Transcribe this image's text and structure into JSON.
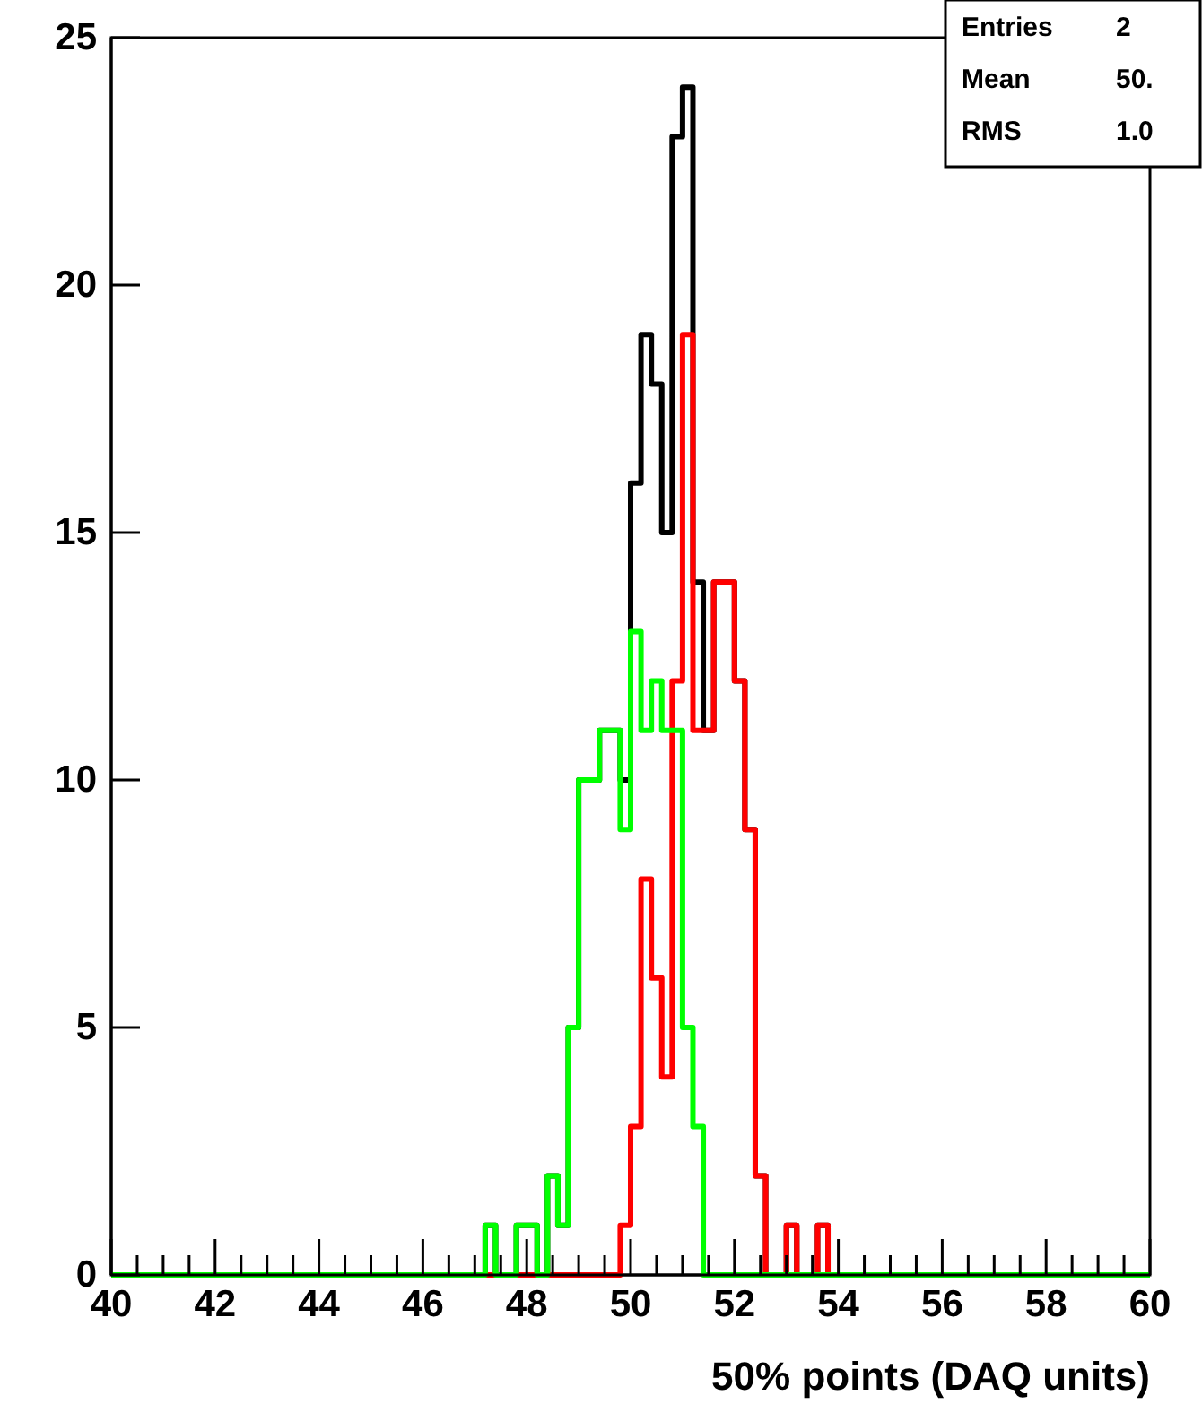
{
  "chart_data": {
    "type": "histogram",
    "xlabel": "50% points (DAQ units)",
    "annotations": [
      "Entries 2",
      "Mean 50.",
      "RMS 1.0"
    ],
    "bins": [
      40,
      40.2,
      40.4,
      40.6,
      40.8,
      41,
      41.2,
      41.4,
      41.6,
      41.8,
      42,
      42.2,
      42.4,
      42.6,
      42.8,
      43,
      43.2,
      43.4,
      43.6,
      43.8,
      44,
      44.2,
      44.4,
      44.6,
      44.8,
      45,
      45.2,
      45.4,
      45.6,
      45.8,
      46,
      46.2,
      46.4,
      46.6,
      46.8,
      47,
      47.2,
      47.4,
      47.6,
      47.8,
      48,
      48.2,
      48.4,
      48.6,
      48.8,
      49,
      49.2,
      49.4,
      49.6,
      49.8,
      50,
      50.2,
      50.4,
      50.6,
      50.8,
      51,
      51.2,
      51.4,
      51.6,
      51.8,
      52,
      52.2,
      52.4,
      52.6,
      52.8,
      53,
      53.2,
      53.4,
      53.6,
      53.8,
      54,
      54.2,
      54.4,
      54.6,
      54.8,
      55,
      55.2,
      55.4,
      55.6,
      55.8,
      56,
      56.2,
      56.4,
      56.6,
      56.8,
      57,
      57.2,
      57.4,
      57.6,
      57.8,
      58,
      58.2,
      58.4,
      58.6,
      58.8,
      59,
      59.2,
      59.4,
      59.6,
      59.8,
      60
    ],
    "series": [
      {
        "color": "#000000",
        "values": [
          0,
          0,
          0,
          0,
          0,
          0,
          0,
          0,
          0,
          0,
          0,
          0,
          0,
          0,
          0,
          0,
          0,
          0,
          0,
          0,
          0,
          0,
          0,
          0,
          0,
          0,
          0,
          0,
          0,
          0,
          0,
          0,
          0,
          0,
          0,
          0,
          1,
          0,
          0,
          1,
          1,
          0,
          2,
          1,
          5,
          10,
          10,
          11,
          11,
          10,
          16,
          19,
          18,
          15,
          23,
          24,
          14,
          11,
          14,
          14,
          12,
          9,
          2,
          0,
          0,
          1,
          0,
          0,
          1,
          0,
          0,
          0,
          0,
          0,
          0,
          0,
          0,
          0,
          0,
          0,
          0,
          0,
          0,
          0,
          0,
          0,
          0,
          0,
          0,
          0,
          0,
          0,
          0,
          0,
          0,
          0,
          0,
          0,
          0,
          0
        ]
      },
      {
        "color": "#ff0000",
        "values": [
          0,
          0,
          0,
          0,
          0,
          0,
          0,
          0,
          0,
          0,
          0,
          0,
          0,
          0,
          0,
          0,
          0,
          0,
          0,
          0,
          0,
          0,
          0,
          0,
          0,
          0,
          0,
          0,
          0,
          0,
          0,
          0,
          0,
          0,
          0,
          0,
          0,
          0,
          0,
          0,
          0,
          0,
          0,
          0,
          0,
          0,
          0,
          0,
          0,
          1,
          3,
          8,
          6,
          4,
          12,
          19,
          11,
          11,
          14,
          14,
          12,
          9,
          2,
          0,
          0,
          1,
          0,
          0,
          1,
          0,
          0,
          0,
          0,
          0,
          0,
          0,
          0,
          0,
          0,
          0,
          0,
          0,
          0,
          0,
          0,
          0,
          0,
          0,
          0,
          0,
          0,
          0,
          0,
          0,
          0,
          0,
          0,
          0,
          0,
          0
        ]
      },
      {
        "color": "#00ff00",
        "values": [
          0,
          0,
          0,
          0,
          0,
          0,
          0,
          0,
          0,
          0,
          0,
          0,
          0,
          0,
          0,
          0,
          0,
          0,
          0,
          0,
          0,
          0,
          0,
          0,
          0,
          0,
          0,
          0,
          0,
          0,
          0,
          0,
          0,
          0,
          0,
          0,
          1,
          0,
          0,
          1,
          1,
          0,
          2,
          1,
          5,
          10,
          10,
          11,
          11,
          9,
          13,
          11,
          12,
          11,
          11,
          5,
          3,
          0,
          0,
          0,
          0,
          0,
          0,
          0,
          0,
          0,
          0,
          0,
          0,
          0,
          0,
          0,
          0,
          0,
          0,
          0,
          0,
          0,
          0,
          0,
          0,
          0,
          0,
          0,
          0,
          0,
          0,
          0,
          0,
          0,
          0,
          0,
          0,
          0,
          0,
          0,
          0,
          0,
          0,
          0
        ]
      }
    ],
    "xlim": [
      40,
      60
    ],
    "xticks": [
      40,
      {
        "value": 40.5,
        "label": null
      },
      {
        "value": 41,
        "label": null
      },
      {
        "value": 41.5,
        "label": null
      },
      42,
      {
        "value": 42.5,
        "label": null
      },
      {
        "value": 43,
        "label": null
      },
      {
        "value": 43.5,
        "label": null
      },
      44,
      {
        "value": 44.5,
        "label": null
      },
      {
        "value": 45,
        "label": null
      },
      {
        "value": 45.5,
        "label": null
      },
      46,
      {
        "value": 46.5,
        "label": null
      },
      {
        "value": 47,
        "label": null
      },
      {
        "value": 47.5,
        "label": null
      },
      48,
      {
        "value": 48.5,
        "label": null
      },
      {
        "value": 49,
        "label": null
      },
      {
        "value": 49.5,
        "label": null
      },
      50,
      {
        "value": 50.5,
        "label": null
      },
      {
        "value": 51,
        "label": null
      },
      {
        "value": 51.5,
        "label": null
      },
      52,
      {
        "value": 52.5,
        "label": null
      },
      {
        "value": 53,
        "label": null
      },
      {
        "value": 53.5,
        "label": null
      },
      54,
      {
        "value": 54.5,
        "label": null
      },
      {
        "value": 55,
        "label": null
      },
      {
        "value": 55.5,
        "label": null
      },
      56,
      {
        "value": 56.5,
        "label": null
      },
      {
        "value": 57,
        "label": null
      },
      {
        "value": 57.5,
        "label": null
      },
      58,
      {
        "value": 58.5,
        "label": null
      },
      {
        "value": 59,
        "label": null
      },
      {
        "value": 59.5,
        "label": null
      },
      60
    ],
    "ylim": [
      0,
      25
    ],
    "yticks": [
      0,
      5,
      10,
      15,
      20,
      25
    ]
  }
}
